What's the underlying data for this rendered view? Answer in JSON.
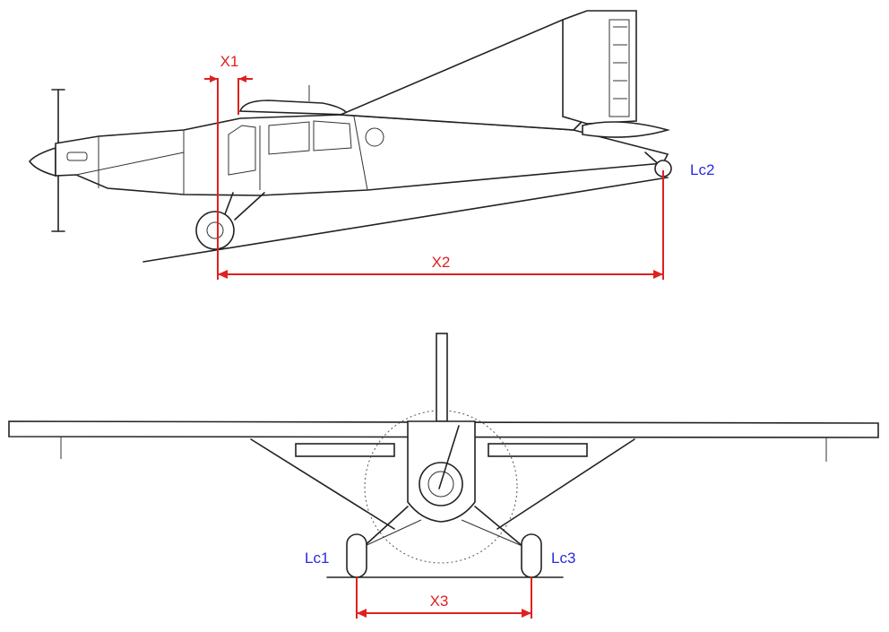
{
  "colors": {
    "dimension": "#e02020",
    "contact_label": "#2a2ae0",
    "line_art": "#222222"
  },
  "dimensions": {
    "x1": "X1",
    "x2": "X2",
    "x3": "X3"
  },
  "contact_points": {
    "lc1": "Lc1",
    "lc2": "Lc2",
    "lc3": "Lc3"
  }
}
